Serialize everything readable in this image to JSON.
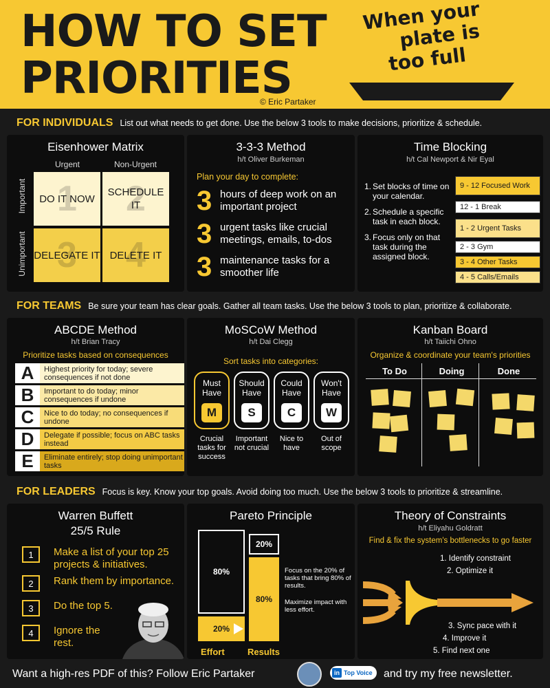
{
  "header": {
    "title_line1": "HOW TO SET",
    "title_line2": "PRIORITIES",
    "copyright": "© Eric Partaker",
    "subtitle": [
      "When your",
      "plate is",
      "too full"
    ]
  },
  "sections": {
    "individuals": {
      "label": "FOR INDIVIDUALS",
      "text": "List out what needs to get done. Use the below 3 tools to make decisions, prioritize & schedule."
    },
    "teams": {
      "label": "FOR TEAMS",
      "text": "Be sure your team has clear goals. Gather all team tasks. Use the below 3 tools to plan, prioritize & collaborate."
    },
    "leaders": {
      "label": "FOR LEADERS",
      "text": "Focus is key. Know your top goals. Avoid doing too much. Use the below 3 tools to prioritize & streamline."
    }
  },
  "eisenhower": {
    "title": "Eisenhower Matrix",
    "col_urgent": "Urgent",
    "col_non_urgent": "Non-Urgent",
    "row_important": "Important",
    "row_unimportant": "Unimportant",
    "cells": [
      {
        "num": "1",
        "text": "DO IT NOW",
        "color": "#fdf4cf"
      },
      {
        "num": "2",
        "text": "SCHEDULE IT",
        "color": "#fdf4cf"
      },
      {
        "num": "3",
        "text": "DELEGATE IT",
        "color": "#f3cf4a"
      },
      {
        "num": "4",
        "text": "DELETE IT",
        "color": "#f3cf4a"
      }
    ]
  },
  "method333": {
    "title": "3-3-3 Method",
    "credit": "h/t Oliver Burkeman",
    "intro": "Plan your day to complete:",
    "items": [
      {
        "num": "3",
        "text": "hours of deep work on an important project"
      },
      {
        "num": "3",
        "text": "urgent tasks like crucial meetings, emails, to-dos"
      },
      {
        "num": "3",
        "text": "maintenance tasks for a smoother life"
      }
    ]
  },
  "timeblocking": {
    "title": "Time Blocking",
    "credit": "h/t Cal Newport & Nir Eyal",
    "steps": [
      {
        "n": "1.",
        "text": "Set blocks of time on your calendar."
      },
      {
        "n": "2.",
        "text": "Schedule a specific task in each block."
      },
      {
        "n": "3.",
        "text": "Focus only on that task during the assigned block."
      }
    ],
    "blocks": [
      {
        "text": "9 - 12 Focused Work",
        "color": "#f7c832"
      },
      {
        "text": "12 - 1 Break",
        "color": "#ffffff"
      },
      {
        "text": "1 - 2 Urgent Tasks",
        "color": "#fbe08a"
      },
      {
        "text": "2 - 3 Gym",
        "color": "#ffffff"
      },
      {
        "text": "3 - 4 Other Tasks",
        "color": "#f7c832"
      },
      {
        "text": "4 - 5 Calls/Emails",
        "color": "#fbe08a"
      }
    ]
  },
  "abcde": {
    "title": "ABCDE Method",
    "credit": "h/t Brian Tracy",
    "intro": "Prioritize tasks based on consequences",
    "rows": [
      {
        "letter": "A",
        "text": "Highest priority for today; severe consequences if not done",
        "color": "#fdf4cf"
      },
      {
        "letter": "B",
        "text": "Important to do today; minor consequences if undone",
        "color": "#fbe9a6"
      },
      {
        "letter": "C",
        "text": "Nice to do today; no consequences if undone",
        "color": "#f8dc78"
      },
      {
        "letter": "D",
        "text": "Delegate if possible; focus on ABC tasks instead",
        "color": "#f3cb45"
      },
      {
        "letter": "E",
        "text": "Eliminate entirely; stop doing unimportant tasks",
        "color": "#d9a91c"
      }
    ]
  },
  "moscow": {
    "title": "MoSCoW Method",
    "credit": "h/t Dai Clegg",
    "intro": "Sort tasks into categories:",
    "cols": [
      {
        "label": "Must Have",
        "letter": "M",
        "desc": "Crucial tasks for success",
        "highlight": true
      },
      {
        "label": "Should Have",
        "letter": "S",
        "desc": "Important not crucial",
        "highlight": false
      },
      {
        "label": "Could Have",
        "letter": "C",
        "desc": "Nice to have",
        "highlight": false
      },
      {
        "label": "Won't Have",
        "letter": "W",
        "desc": "Out of scope",
        "highlight": false
      }
    ]
  },
  "kanban": {
    "title": "Kanban Board",
    "credit": "h/t Taiichi Ohno",
    "intro": "Organize & coordinate your team's priorities",
    "columns": [
      "To Do",
      "Doing",
      "Done"
    ]
  },
  "buffett": {
    "title_line1": "Warren Buffett",
    "title_line2": "25/5 Rule",
    "items": [
      {
        "n": "1",
        "text": "Make a list of your top 25 projects & initiatives."
      },
      {
        "n": "2",
        "text": "Rank them by importance."
      },
      {
        "n": "3",
        "text": "Do the top 5."
      },
      {
        "n": "4",
        "text": "Ignore the rest."
      }
    ]
  },
  "pareto": {
    "title": "Pareto Principle",
    "effort_top": "80%",
    "effort_bottom": "20%",
    "results_top": "20%",
    "results_bottom": "80%",
    "note1": "Focus on the 20% of tasks that bring 80% of results.",
    "note2": "Maximize impact with less effort.",
    "effort_label": "Effort",
    "results_label": "Results"
  },
  "constraints": {
    "title": "Theory of Constraints",
    "credit": "h/t Eliyahu Goldratt",
    "intro": "Find & fix the system's bottlenecks to go faster",
    "steps": [
      "1. Identify constraint",
      "2. Optimize it",
      "3. Sync pace with it",
      "4. Improve it",
      "5. Find next one"
    ]
  },
  "footer": {
    "text_before": "Want a high-res PDF of this? Follow Eric Partaker",
    "badge": "Top Voice",
    "badge_in": "in",
    "text_after": "and try my free newsletter."
  },
  "colors": {
    "accent": "#f7c832",
    "background": "#1a1a1a",
    "panel": "#0d0d0d"
  }
}
